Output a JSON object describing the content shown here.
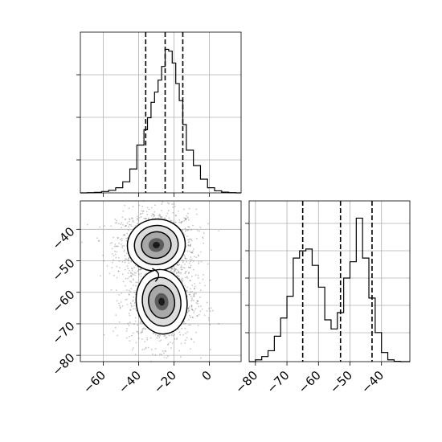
{
  "chart_data": {
    "type": "corner",
    "panels": [
      {
        "id": "hist-x",
        "type": "histogram",
        "x_range": [
          -73,
          18
        ],
        "x_ticks": [
          -60,
          -40,
          -20,
          0
        ],
        "bin_edges": [
          -73,
          -69,
          -65,
          -61,
          -57,
          -53,
          -49,
          -45,
          -41,
          -37,
          -35,
          -33,
          -31,
          -29,
          -27,
          -25,
          -23,
          -21,
          -19,
          -17,
          -15,
          -13,
          -9,
          -5,
          -1,
          3,
          7,
          11,
          15,
          18
        ],
        "counts": [
          0,
          1,
          3,
          8,
          15,
          30,
          65,
          140,
          280,
          370,
          440,
          530,
          590,
          660,
          740,
          840,
          830,
          760,
          640,
          540,
          400,
          250,
          160,
          80,
          30,
          12,
          4,
          1,
          0
        ],
        "quantile_lines": [
          -36,
          -25,
          -15
        ],
        "grid": true
      },
      {
        "id": "hist-y",
        "type": "histogram",
        "x_range": [
          -82,
          -31
        ],
        "x_ticks": [
          -80,
          -70,
          -60,
          -50,
          -40
        ],
        "bin_edges": [
          -82,
          -80,
          -78,
          -76,
          -74,
          -72,
          -70,
          -68,
          -66,
          -64,
          -62,
          -60,
          -58,
          -56,
          -54,
          -52,
          -50,
          -48,
          -46,
          -44,
          -42,
          -40,
          -38,
          -36,
          -34,
          -31
        ],
        "counts": [
          0,
          10,
          28,
          60,
          140,
          240,
          360,
          570,
          610,
          620,
          530,
          410,
          230,
          180,
          270,
          460,
          550,
          790,
          570,
          350,
          160,
          50,
          10,
          2,
          0
        ],
        "quantile_lines": [
          -65,
          -53,
          -43
        ],
        "grid": true
      },
      {
        "id": "scatter-2d",
        "type": "density",
        "x_range": [
          -73,
          18
        ],
        "y_range": [
          -82,
          -31
        ],
        "x_ticks": [
          -60,
          -40,
          -20,
          0
        ],
        "y_ticks": [
          -80,
          -70,
          -60,
          -50,
          -40
        ],
        "x_tick_labels": [
          "−60",
          "−40",
          "−20",
          "0"
        ],
        "y_tick_labels": [
          "−80",
          "−70",
          "−60",
          "−50",
          "−40"
        ],
        "clusters": [
          {
            "center": [
              -30,
              -45
            ],
            "spread": [
              8,
              4
            ]
          },
          {
            "center": [
              -27,
              -63
            ],
            "spread": [
              7,
              5
            ]
          }
        ],
        "grid": true
      }
    ],
    "hist_y_tick_labels": [
      "−80",
      "−70",
      "−60",
      "−50",
      "−40"
    ]
  }
}
